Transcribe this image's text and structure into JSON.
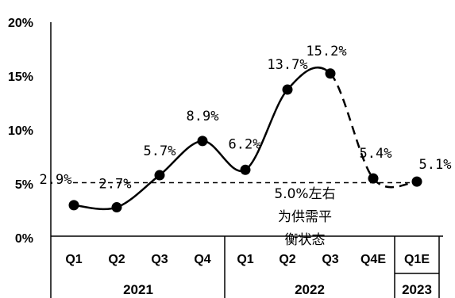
{
  "chart_data": {
    "type": "line",
    "categories": [
      "Q1",
      "Q2",
      "Q3",
      "Q4",
      "Q1",
      "Q2",
      "Q3",
      "Q4E",
      "Q1E"
    ],
    "years": [
      {
        "label": "2021",
        "span": [
          0,
          3
        ]
      },
      {
        "label": "2022",
        "span": [
          4,
          7
        ]
      },
      {
        "label": "2023",
        "span": [
          8,
          8
        ]
      }
    ],
    "series": [
      {
        "values": [
          2.9,
          2.7,
          5.7,
          8.9,
          6.2,
          13.7,
          15.2,
          5.4,
          5.1
        ],
        "data_labels": [
          "2.9%",
          "2.7%",
          "5.7%",
          "8.9%",
          "6.2%",
          "13.7%",
          "15.2%",
          "5.4%",
          "5.1%"
        ],
        "actual_through_index": 6,
        "forecast_style": "dashed"
      }
    ],
    "yticks": [
      "0%",
      "5%",
      "10%",
      "15%",
      "20%"
    ],
    "ylim": [
      0,
      20
    ],
    "reference_line": {
      "value": 5.0,
      "style": "dashed"
    },
    "annotation_lines": [
      "5.0%左右",
      "为供需平",
      "衡状态"
    ],
    "grid": false,
    "legend": "none",
    "colors": {
      "line": "#000000",
      "marker": "#000000",
      "axis": "#000000"
    }
  }
}
